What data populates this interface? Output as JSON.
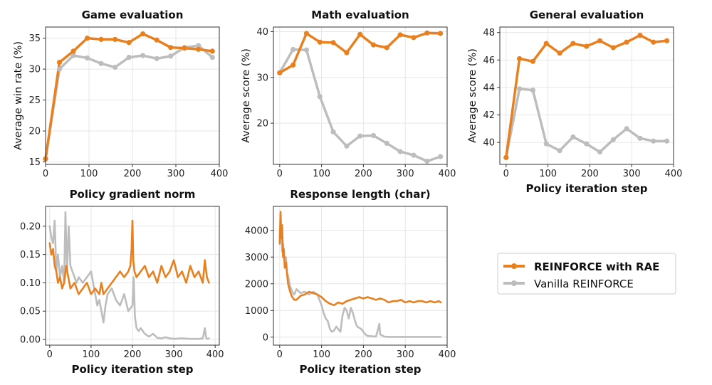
{
  "colors": {
    "rae": "#E8801F",
    "vanilla": "#BDBDBD",
    "grid": "#E6E6E6",
    "axis": "#333333"
  },
  "legend": {
    "placement": "right-bottom",
    "items": [
      {
        "label": "REINFORCE with RAE",
        "color": "#E8801F",
        "bold": true
      },
      {
        "label": "Vanilla REINFORCE",
        "color": "#BDBDBD",
        "bold": false
      }
    ]
  },
  "chart_data": [
    {
      "id": "game",
      "type": "line",
      "title": "Game evaluation",
      "xlabel": "",
      "ylabel": "Average win rate (%)",
      "xlim": [
        0,
        400
      ],
      "ylim": [
        14.6,
        36.8
      ],
      "xticks": [
        0,
        100,
        200,
        300,
        400
      ],
      "yticks": [
        15,
        20,
        25,
        30,
        35
      ],
      "markers": true,
      "series": [
        {
          "name": "REINFORCE with RAE",
          "x": [
            0,
            32,
            64,
            96,
            128,
            160,
            192,
            224,
            256,
            288,
            320,
            352,
            384
          ],
          "y": [
            15.5,
            31.1,
            32.9,
            35.0,
            34.8,
            34.8,
            34.3,
            35.7,
            34.7,
            33.5,
            33.4,
            33.2,
            32.9
          ]
        },
        {
          "name": "Vanilla REINFORCE",
          "x": [
            0,
            32,
            64,
            96,
            128,
            160,
            192,
            224,
            256,
            288,
            320,
            352,
            384
          ],
          "y": [
            15.5,
            30.0,
            32.2,
            31.8,
            30.9,
            30.3,
            31.9,
            32.2,
            31.7,
            32.1,
            33.5,
            33.8,
            31.9
          ]
        }
      ]
    },
    {
      "id": "math",
      "type": "line",
      "title": "Math evaluation",
      "xlabel": "",
      "ylabel": "Average score (%)",
      "xlim": [
        -15,
        400
      ],
      "ylim": [
        11,
        41
      ],
      "xticks": [
        0,
        100,
        200,
        300,
        400
      ],
      "yticks": [
        20,
        30,
        40
      ],
      "markers": true,
      "series": [
        {
          "name": "REINFORCE with RAE",
          "x": [
            0,
            32,
            64,
            96,
            128,
            160,
            192,
            224,
            256,
            288,
            320,
            352,
            384
          ],
          "y": [
            31.0,
            32.7,
            39.6,
            37.7,
            37.6,
            35.4,
            39.4,
            37.1,
            36.5,
            39.3,
            38.7,
            39.7,
            39.6
          ]
        },
        {
          "name": "Vanilla REINFORCE",
          "x": [
            0,
            32,
            64,
            96,
            128,
            160,
            192,
            224,
            256,
            288,
            320,
            352,
            384
          ],
          "y": [
            31.0,
            36.1,
            36.0,
            25.8,
            18.1,
            15.0,
            17.2,
            17.3,
            15.6,
            13.8,
            13.0,
            11.7,
            12.7
          ]
        }
      ]
    },
    {
      "id": "general",
      "type": "line",
      "title": "General evaluation",
      "xlabel": "Policy iteration step",
      "ylabel": "Average score (%)",
      "xlim": [
        -15,
        400
      ],
      "ylim": [
        38.4,
        48.4
      ],
      "xticks": [
        0,
        100,
        200,
        300,
        400
      ],
      "yticks": [
        40,
        42,
        44,
        46,
        48
      ],
      "markers": true,
      "series": [
        {
          "name": "REINFORCE with RAE",
          "x": [
            0,
            32,
            64,
            96,
            128,
            160,
            192,
            224,
            256,
            288,
            320,
            352,
            384
          ],
          "y": [
            38.9,
            46.1,
            45.9,
            47.2,
            46.5,
            47.2,
            47.0,
            47.4,
            46.9,
            47.3,
            47.8,
            47.3,
            47.4
          ]
        },
        {
          "name": "Vanilla REINFORCE",
          "x": [
            0,
            32,
            64,
            96,
            128,
            160,
            192,
            224,
            256,
            288,
            320,
            352,
            384
          ],
          "y": [
            38.9,
            43.9,
            43.8,
            39.9,
            39.4,
            40.4,
            39.9,
            39.3,
            40.2,
            41.0,
            40.3,
            40.1,
            40.1
          ]
        }
      ]
    },
    {
      "id": "gradnorm",
      "type": "line",
      "title": "Policy gradient norm",
      "xlabel": "Policy iteration step",
      "ylabel": "",
      "xlim": [
        -10,
        410
      ],
      "ylim": [
        -0.01,
        0.235
      ],
      "xticks": [
        0,
        100,
        200,
        300,
        400
      ],
      "yticks": [
        0.0,
        0.05,
        0.1,
        0.15,
        0.2
      ],
      "ytick_labels": [
        "0.00",
        "0.05",
        "0.10",
        "0.15",
        "0.20"
      ],
      "markers": false,
      "series": [
        {
          "name": "REINFORCE with RAE",
          "x": [
            0,
            4,
            8,
            12,
            16,
            20,
            25,
            30,
            35,
            40,
            50,
            60,
            70,
            80,
            90,
            100,
            110,
            120,
            125,
            130,
            140,
            150,
            160,
            170,
            180,
            190,
            195,
            198,
            200,
            202,
            205,
            210,
            220,
            230,
            240,
            250,
            260,
            270,
            280,
            290,
            300,
            310,
            320,
            330,
            340,
            350,
            360,
            370,
            375,
            380,
            385
          ],
          "y": [
            0.17,
            0.15,
            0.16,
            0.13,
            0.12,
            0.1,
            0.11,
            0.09,
            0.1,
            0.13,
            0.09,
            0.1,
            0.08,
            0.09,
            0.1,
            0.08,
            0.09,
            0.08,
            0.1,
            0.08,
            0.09,
            0.1,
            0.11,
            0.12,
            0.11,
            0.12,
            0.13,
            0.16,
            0.21,
            0.14,
            0.12,
            0.11,
            0.12,
            0.13,
            0.11,
            0.12,
            0.1,
            0.13,
            0.11,
            0.12,
            0.14,
            0.11,
            0.12,
            0.1,
            0.13,
            0.11,
            0.12,
            0.1,
            0.14,
            0.11,
            0.1
          ]
        },
        {
          "name": "Vanilla REINFORCE",
          "x": [
            0,
            4,
            8,
            12,
            16,
            20,
            25,
            30,
            35,
            38,
            42,
            46,
            50,
            55,
            60,
            65,
            70,
            80,
            90,
            100,
            105,
            110,
            115,
            120,
            125,
            130,
            135,
            140,
            150,
            160,
            170,
            180,
            190,
            200,
            203,
            206,
            210,
            215,
            220,
            230,
            240,
            250,
            260,
            270,
            280,
            290,
            300,
            320,
            340,
            360,
            370,
            375,
            378,
            380,
            385
          ],
          "y": [
            0.2,
            0.18,
            0.17,
            0.21,
            0.12,
            0.15,
            0.11,
            0.13,
            0.1,
            0.225,
            0.12,
            0.2,
            0.13,
            0.12,
            0.11,
            0.1,
            0.11,
            0.1,
            0.11,
            0.12,
            0.1,
            0.08,
            0.06,
            0.07,
            0.05,
            0.03,
            0.06,
            0.08,
            0.09,
            0.07,
            0.06,
            0.08,
            0.05,
            0.06,
            0.11,
            0.04,
            0.02,
            0.015,
            0.02,
            0.01,
            0.005,
            0.01,
            0.003,
            0.002,
            0.004,
            0.002,
            0.001,
            0.002,
            0.001,
            0.001,
            0.002,
            0.02,
            0.004,
            0.001,
            0.002
          ]
        }
      ]
    },
    {
      "id": "resplen",
      "type": "line",
      "title": "Response length (char)",
      "xlabel": "Policy iteration step",
      "ylabel": "",
      "xlim": [
        -15,
        400
      ],
      "ylim": [
        -300,
        4900
      ],
      "xticks": [
        0,
        100,
        200,
        300,
        400
      ],
      "yticks": [
        0,
        1000,
        2000,
        3000,
        4000
      ],
      "markers": false,
      "series": [
        {
          "name": "REINFORCE with RAE",
          "x": [
            0,
            2,
            4,
            6,
            8,
            10,
            12,
            15,
            18,
            20,
            25,
            30,
            35,
            40,
            50,
            60,
            70,
            80,
            90,
            100,
            110,
            120,
            130,
            140,
            150,
            160,
            170,
            180,
            190,
            200,
            210,
            220,
            230,
            240,
            250,
            260,
            270,
            280,
            290,
            300,
            310,
            320,
            330,
            340,
            350,
            360,
            370,
            380,
            385
          ],
          "y": [
            3500,
            4700,
            3700,
            4200,
            3000,
            3300,
            2600,
            2800,
            2300,
            2000,
            1700,
            1500,
            1400,
            1400,
            1550,
            1600,
            1700,
            1650,
            1600,
            1500,
            1350,
            1250,
            1200,
            1300,
            1250,
            1350,
            1400,
            1450,
            1500,
            1450,
            1500,
            1450,
            1400,
            1450,
            1400,
            1300,
            1350,
            1350,
            1400,
            1300,
            1350,
            1300,
            1350,
            1350,
            1300,
            1350,
            1300,
            1350,
            1300
          ]
        },
        {
          "name": "Vanilla REINFORCE",
          "x": [
            0,
            2,
            4,
            6,
            8,
            10,
            12,
            15,
            18,
            20,
            25,
            30,
            35,
            40,
            50,
            60,
            70,
            80,
            90,
            100,
            105,
            110,
            115,
            120,
            125,
            130,
            135,
            140,
            145,
            150,
            155,
            160,
            165,
            170,
            175,
            180,
            185,
            190,
            195,
            200,
            205,
            210,
            220,
            230,
            235,
            238,
            240,
            250,
            260,
            280,
            300,
            320,
            340,
            360,
            380,
            385
          ],
          "y": [
            3800,
            3600,
            3900,
            3200,
            3500,
            3000,
            2800,
            3000,
            2400,
            2300,
            1900,
            1700,
            1600,
            1800,
            1650,
            1700,
            1600,
            1700,
            1600,
            1200,
            900,
            700,
            600,
            300,
            200,
            250,
            400,
            300,
            200,
            800,
            1100,
            1000,
            700,
            1100,
            900,
            600,
            400,
            350,
            300,
            200,
            100,
            50,
            30,
            20,
            300,
            500,
            100,
            20,
            10,
            10,
            10,
            10,
            10,
            10,
            10,
            10
          ]
        }
      ]
    }
  ]
}
